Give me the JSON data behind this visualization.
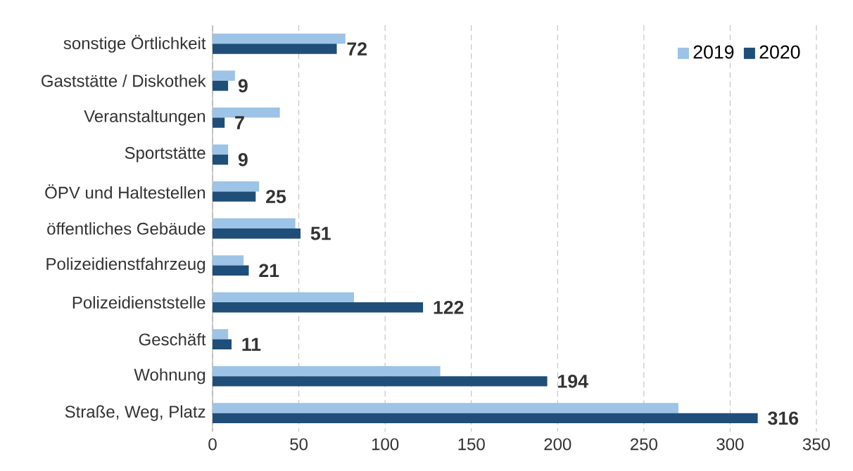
{
  "chart_data": {
    "type": "bar",
    "orientation": "horizontal",
    "categories": [
      "sonstige Örtlichkeit",
      "Gaststätte / Diskothek",
      "Veranstaltungen",
      "Sportstätte",
      "ÖPV und Haltestellen",
      "öffentliches Gebäude",
      "Polizeidienstfahrzeug",
      "Polizeidienststelle",
      "Geschäft",
      "Wohnung",
      "Straße, Weg, Platz"
    ],
    "series": [
      {
        "name": "2019",
        "color": "#9dc3e6",
        "values": [
          77,
          13,
          39,
          9,
          27,
          48,
          18,
          82,
          9,
          132,
          270
        ]
      },
      {
        "name": "2020",
        "color": "#1f4e79",
        "values": [
          72,
          9,
          7,
          9,
          25,
          51,
          21,
          122,
          11,
          194,
          316
        ],
        "value_labels": [
          "72",
          "9",
          "7",
          "9",
          "25",
          "51",
          "21",
          "122",
          "11",
          "194",
          "316"
        ]
      }
    ],
    "xlim": [
      0,
      350
    ],
    "xticks": [
      0,
      50,
      100,
      150,
      200,
      250,
      300,
      350
    ],
    "grid": "x",
    "legend": "top right"
  }
}
